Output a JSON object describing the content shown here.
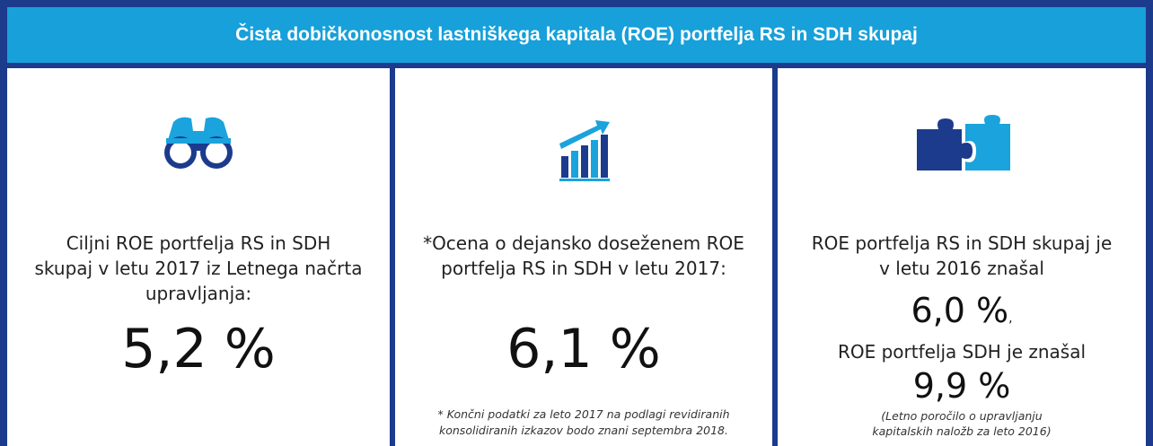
{
  "header": {
    "title": "Čista dobičkonosnost lastniškega kapitala (ROE) portfelja RS in SDH skupaj"
  },
  "panels": [
    {
      "text": [
        "Ciljni ROE portfelja RS in SDH",
        "skupaj v letu 2017 iz Letnega načrta",
        "upravljanja:"
      ],
      "value": "5,2 %"
    },
    {
      "text": [
        "*Ocena o dejansko doseženem ROE",
        "portfelja RS in SDH v letu 2017:"
      ],
      "value": "6,1 %",
      "note": [
        "*  Končni podatki za leto 2017 na podlagi revidiranih",
        "konsolidiranih izkazov bodo znani septembra 2018."
      ]
    },
    {
      "text": [
        "ROE portfelja RS in SDH skupaj je",
        "v letu 2016 znašal"
      ],
      "value": "6,0 %",
      "separator": ",",
      "text2": "ROE portfelja SDH je znašal",
      "value2": "9,9 %",
      "note": [
        "(Letno poročilo o upravljanju",
        "kapitalskih naložb za leto 2016)"
      ]
    }
  ]
}
